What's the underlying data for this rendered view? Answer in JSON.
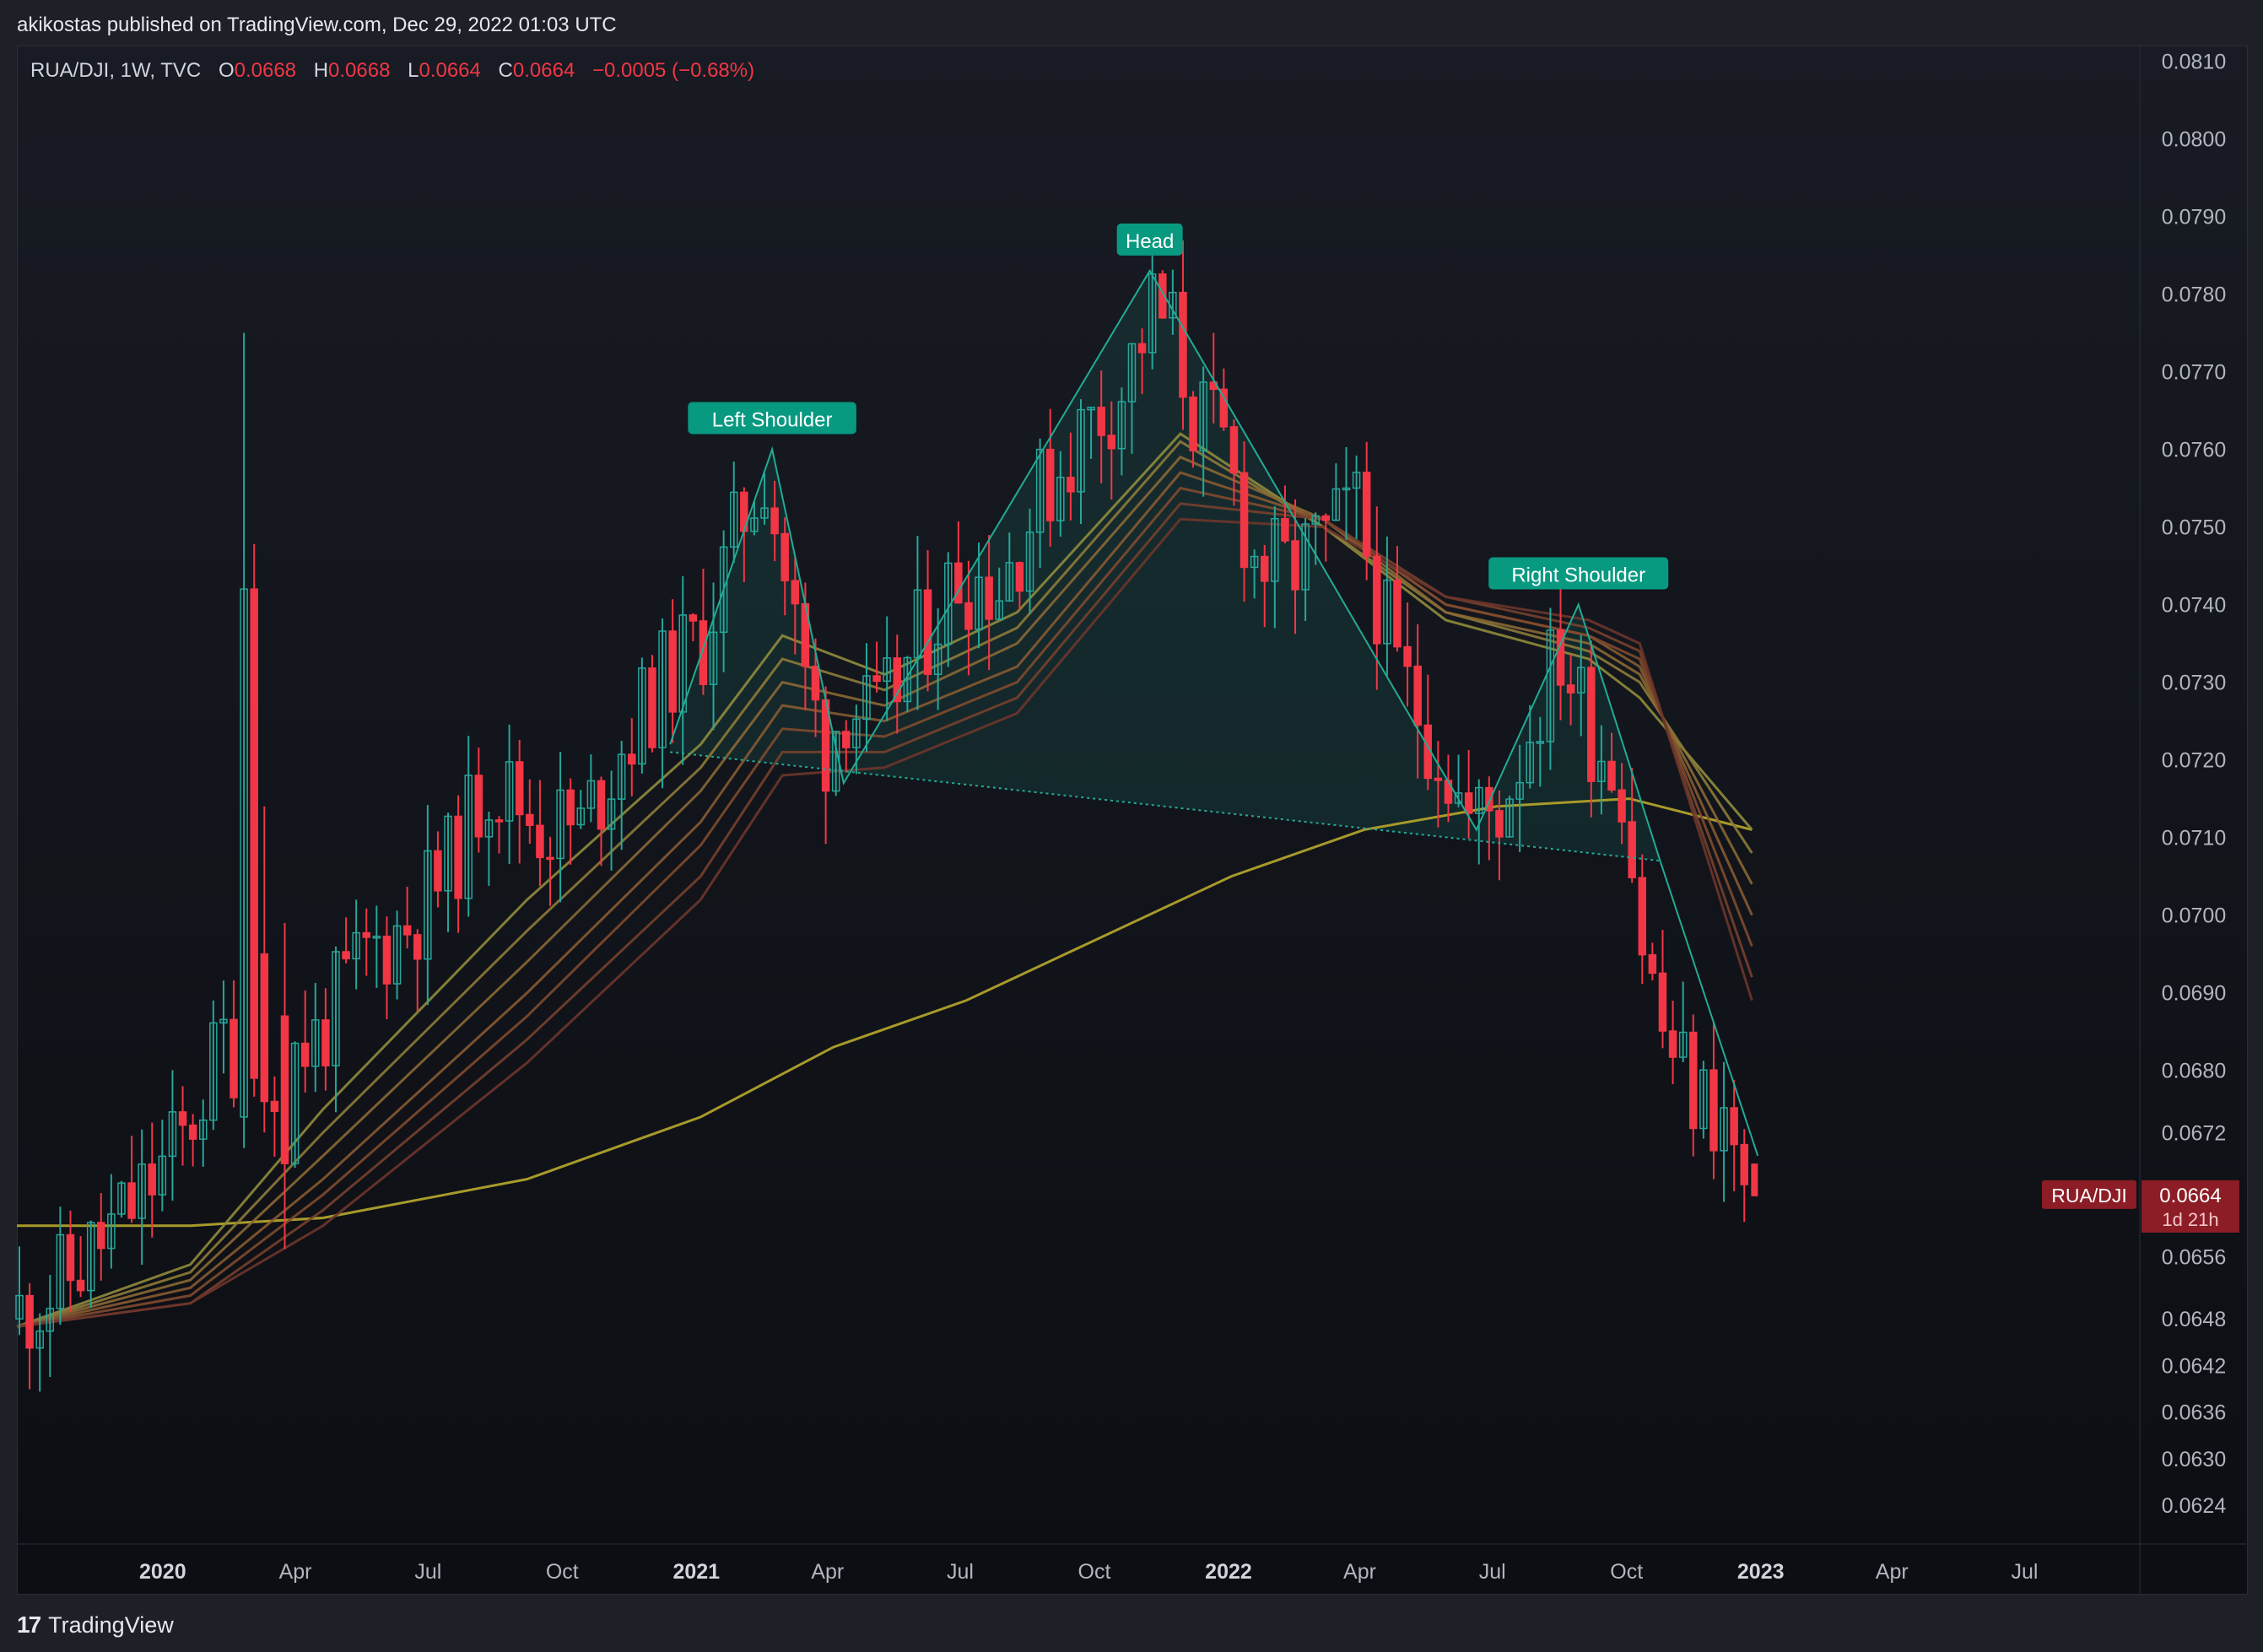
{
  "header": {
    "published_text": "akikostas published on TradingView.com, Dec 29, 2022 01:03 UTC"
  },
  "legend": {
    "symbol": "RUA/DJI, 1W, TVC",
    "o_label": "O",
    "o_value": "0.0668",
    "h_label": "H",
    "h_value": "0.0668",
    "l_label": "L",
    "l_value": "0.0664",
    "c_label": "C",
    "c_value": "0.0664",
    "change": "−0.0005 (−0.68%)"
  },
  "price_badge": {
    "symbol": "RUA/DJI",
    "price": "0.0664",
    "countdown": "1d 21h"
  },
  "footer": {
    "logo_glyph": "17",
    "brand": "TradingView"
  },
  "colors": {
    "up": "#26a69a",
    "down": "#f23645",
    "background": "#131722",
    "pattern": "#22ab94",
    "sma": "#a89a2a"
  },
  "chart_data": {
    "type": "candlestick",
    "interval": "1W",
    "y_axis": {
      "ticks": [
        "0.0810",
        "0.0800",
        "0.0790",
        "0.0780",
        "0.0770",
        "0.0760",
        "0.0750",
        "0.0740",
        "0.0730",
        "0.0720",
        "0.0710",
        "0.0700",
        "0.0690",
        "0.0680",
        "0.0672",
        "0.0656",
        "0.0648",
        "0.0642",
        "0.0636",
        "0.0630",
        "0.0624"
      ],
      "tick_values": [
        0.081,
        0.08,
        0.079,
        0.078,
        0.077,
        0.076,
        0.075,
        0.074,
        0.073,
        0.072,
        0.071,
        0.07,
        0.069,
        0.068,
        0.0672,
        0.0656,
        0.0648,
        0.0642,
        0.0636,
        0.063,
        0.0624
      ],
      "range": [
        0.0619,
        0.0812
      ]
    },
    "x_axis": {
      "labels": [
        {
          "text": "2020",
          "date": "2020-01-01",
          "bold": true
        },
        {
          "text": "Apr",
          "date": "2020-04-01"
        },
        {
          "text": "Jul",
          "date": "2020-07-01"
        },
        {
          "text": "Oct",
          "date": "2020-10-01"
        },
        {
          "text": "2021",
          "date": "2021-01-01",
          "bold": true
        },
        {
          "text": "Apr",
          "date": "2021-04-01"
        },
        {
          "text": "Jul",
          "date": "2021-07-01"
        },
        {
          "text": "Oct",
          "date": "2021-10-01"
        },
        {
          "text": "2022",
          "date": "2022-01-01",
          "bold": true
        },
        {
          "text": "Apr",
          "date": "2022-04-01"
        },
        {
          "text": "Jul",
          "date": "2022-07-01"
        },
        {
          "text": "Oct",
          "date": "2022-10-01"
        },
        {
          "text": "2023",
          "date": "2023-01-01",
          "bold": true
        },
        {
          "text": "Apr",
          "date": "2023-04-01"
        },
        {
          "text": "Jul",
          "date": "2023-07-01"
        }
      ],
      "range": [
        "2019-09-23",
        "2023-09-18"
      ]
    },
    "price_path": [
      [
        "2019-09-23",
        0.0648
      ],
      [
        "2019-11-01",
        0.0653
      ],
      [
        "2019-12-15",
        0.0662
      ],
      [
        "2020-01-20",
        0.0671
      ],
      [
        "2020-02-17",
        0.0684
      ],
      [
        "2020-03-16",
        0.068
      ],
      [
        "2020-04-20",
        0.0684
      ],
      [
        "2020-05-25",
        0.0695
      ],
      [
        "2020-06-22",
        0.0699
      ],
      [
        "2020-07-20",
        0.0706
      ],
      [
        "2020-08-17",
        0.0718
      ],
      [
        "2020-09-21",
        0.0712
      ],
      [
        "2020-10-19",
        0.0711
      ],
      [
        "2020-11-16",
        0.0722
      ],
      [
        "2020-12-14",
        0.073
      ],
      [
        "2021-01-11",
        0.0736
      ],
      [
        "2021-02-08",
        0.0752
      ],
      [
        "2021-02-22",
        0.0758
      ],
      [
        "2021-03-08",
        0.0744
      ],
      [
        "2021-03-22",
        0.073
      ],
      [
        "2021-04-05",
        0.0722
      ],
      [
        "2021-04-19",
        0.0728
      ],
      [
        "2021-05-10",
        0.0724
      ],
      [
        "2021-06-07",
        0.0735
      ],
      [
        "2021-07-05",
        0.0744
      ],
      [
        "2021-08-02",
        0.0743
      ],
      [
        "2021-08-30",
        0.0754
      ],
      [
        "2021-09-27",
        0.0762
      ],
      [
        "2021-10-25",
        0.0768
      ],
      [
        "2021-11-15",
        0.0778
      ],
      [
        "2021-11-29",
        0.0775
      ],
      [
        "2021-12-13",
        0.0765
      ],
      [
        "2022-01-03",
        0.076
      ],
      [
        "2022-01-24",
        0.0746
      ],
      [
        "2022-02-14",
        0.0744
      ],
      [
        "2022-03-14",
        0.0748
      ],
      [
        "2022-04-04",
        0.0752
      ],
      [
        "2022-05-02",
        0.0731
      ],
      [
        "2022-05-30",
        0.0722
      ],
      [
        "2022-06-20",
        0.0712
      ],
      [
        "2022-07-11",
        0.0714
      ],
      [
        "2022-08-08",
        0.0728
      ],
      [
        "2022-08-22",
        0.0734
      ],
      [
        "2022-09-12",
        0.0724
      ],
      [
        "2022-10-03",
        0.0718
      ],
      [
        "2022-10-17",
        0.0697
      ],
      [
        "2022-10-31",
        0.0685
      ],
      [
        "2022-11-21",
        0.0677
      ],
      [
        "2022-12-12",
        0.0674
      ],
      [
        "2022-12-26",
        0.0664
      ]
    ],
    "spikes": [
      {
        "date": "2020-02-24",
        "open": 0.0674,
        "high": 0.0775,
        "low": 0.067,
        "close": 0.0742
      },
      {
        "date": "2020-03-09",
        "open": 0.0695,
        "high": 0.0714,
        "low": 0.0672,
        "close": 0.0676
      },
      {
        "date": "2020-03-23",
        "open": 0.0687,
        "high": 0.0699,
        "low": 0.0657,
        "close": 0.0668
      }
    ],
    "last_candle": {
      "date": "2022-12-26",
      "open": 0.0668,
      "high": 0.0668,
      "low": 0.0664,
      "close": 0.0664
    },
    "ema_ribbon": [
      {
        "name": "",
        "points": [
          [
            "2019-09-23",
            0.0647
          ],
          [
            "2020-01-20",
            0.0655
          ],
          [
            "2020-04-20",
            0.0675
          ],
          [
            "2020-09-07",
            0.0702
          ],
          [
            "2021-01-04",
            0.0722
          ],
          [
            "2021-03-01",
            0.0736
          ],
          [
            "2021-05-10",
            0.0731
          ],
          [
            "2021-08-09",
            0.0739
          ],
          [
            "2021-11-29",
            0.0762
          ],
          [
            "2022-03-07",
            0.075
          ],
          [
            "2022-05-30",
            0.0738
          ],
          [
            "2022-09-05",
            0.0733
          ],
          [
            "2022-10-10",
            0.0728
          ],
          [
            "2022-12-26",
            0.0711
          ]
        ]
      },
      {
        "name": "",
        "points": [
          [
            "2019-09-23",
            0.0647
          ],
          [
            "2020-01-20",
            0.0654
          ],
          [
            "2020-04-20",
            0.0672
          ],
          [
            "2020-09-07",
            0.0698
          ],
          [
            "2021-01-04",
            0.0719
          ],
          [
            "2021-03-01",
            0.0733
          ],
          [
            "2021-05-10",
            0.0729
          ],
          [
            "2021-08-09",
            0.0737
          ],
          [
            "2021-11-29",
            0.0761
          ],
          [
            "2022-03-07",
            0.075
          ],
          [
            "2022-05-30",
            0.0739
          ],
          [
            "2022-09-05",
            0.0734
          ],
          [
            "2022-10-10",
            0.073
          ],
          [
            "2022-12-26",
            0.0708
          ]
        ]
      },
      {
        "name": "",
        "points": [
          [
            "2019-09-23",
            0.0647
          ],
          [
            "2020-01-20",
            0.0653
          ],
          [
            "2020-04-20",
            0.0669
          ],
          [
            "2020-09-07",
            0.0694
          ],
          [
            "2021-01-04",
            0.0716
          ],
          [
            "2021-03-01",
            0.073
          ],
          [
            "2021-05-10",
            0.0727
          ],
          [
            "2021-08-09",
            0.0735
          ],
          [
            "2021-11-29",
            0.0759
          ],
          [
            "2022-03-07",
            0.0751
          ],
          [
            "2022-05-30",
            0.0739
          ],
          [
            "2022-09-05",
            0.0735
          ],
          [
            "2022-10-10",
            0.0731
          ],
          [
            "2022-12-26",
            0.0704
          ]
        ]
      },
      {
        "name": "",
        "points": [
          [
            "2019-09-23",
            0.0647
          ],
          [
            "2020-01-20",
            0.0652
          ],
          [
            "2020-04-20",
            0.0666
          ],
          [
            "2020-09-07",
            0.069
          ],
          [
            "2021-01-04",
            0.0712
          ],
          [
            "2021-03-01",
            0.0727
          ],
          [
            "2021-05-10",
            0.0725
          ],
          [
            "2021-08-09",
            0.0732
          ],
          [
            "2021-11-29",
            0.0757
          ],
          [
            "2022-03-07",
            0.0751
          ],
          [
            "2022-05-30",
            0.074
          ],
          [
            "2022-09-05",
            0.0736
          ],
          [
            "2022-10-10",
            0.0732
          ],
          [
            "2022-12-26",
            0.07
          ]
        ]
      },
      {
        "name": "",
        "points": [
          [
            "2019-09-23",
            0.0647
          ],
          [
            "2020-01-20",
            0.0651
          ],
          [
            "2020-04-20",
            0.0664
          ],
          [
            "2020-09-07",
            0.0687
          ],
          [
            "2021-01-04",
            0.0709
          ],
          [
            "2021-03-01",
            0.0724
          ],
          [
            "2021-05-10",
            0.0723
          ],
          [
            "2021-08-09",
            0.073
          ],
          [
            "2021-11-29",
            0.0755
          ],
          [
            "2022-03-07",
            0.0751
          ],
          [
            "2022-05-30",
            0.074
          ],
          [
            "2022-09-05",
            0.0736
          ],
          [
            "2022-10-10",
            0.0733
          ],
          [
            "2022-12-26",
            0.0696
          ]
        ]
      },
      {
        "name": "",
        "points": [
          [
            "2019-09-23",
            0.0647
          ],
          [
            "2020-01-20",
            0.065
          ],
          [
            "2020-04-20",
            0.0662
          ],
          [
            "2020-09-07",
            0.0684
          ],
          [
            "2021-01-04",
            0.0705
          ],
          [
            "2021-03-01",
            0.0721
          ],
          [
            "2021-05-10",
            0.0721
          ],
          [
            "2021-08-09",
            0.0728
          ],
          [
            "2021-11-29",
            0.0753
          ],
          [
            "2022-03-07",
            0.0751
          ],
          [
            "2022-05-30",
            0.0741
          ],
          [
            "2022-09-05",
            0.0737
          ],
          [
            "2022-10-10",
            0.0734
          ],
          [
            "2022-12-26",
            0.0692
          ]
        ]
      },
      {
        "name": "",
        "points": [
          [
            "2019-09-23",
            0.0647
          ],
          [
            "2020-01-20",
            0.065
          ],
          [
            "2020-04-20",
            0.066
          ],
          [
            "2020-09-07",
            0.0681
          ],
          [
            "2021-01-04",
            0.0702
          ],
          [
            "2021-03-01",
            0.0718
          ],
          [
            "2021-05-10",
            0.0719
          ],
          [
            "2021-08-09",
            0.0726
          ],
          [
            "2021-11-29",
            0.0751
          ],
          [
            "2022-03-07",
            0.075
          ],
          [
            "2022-05-30",
            0.0741
          ],
          [
            "2022-09-05",
            0.0738
          ],
          [
            "2022-10-10",
            0.0735
          ],
          [
            "2022-12-26",
            0.0689
          ]
        ]
      }
    ],
    "sma": {
      "name": "",
      "points": [
        [
          "2019-09-23",
          0.066
        ],
        [
          "2020-01-20",
          0.066
        ],
        [
          "2020-04-20",
          0.0661
        ],
        [
          "2020-09-07",
          0.0666
        ],
        [
          "2021-01-04",
          0.0674
        ],
        [
          "2021-04-05",
          0.0683
        ],
        [
          "2021-07-05",
          0.0689
        ],
        [
          "2021-10-04",
          0.0697
        ],
        [
          "2022-01-03",
          0.0705
        ],
        [
          "2022-04-04",
          0.0711
        ],
        [
          "2022-07-04",
          0.0714
        ],
        [
          "2022-10-03",
          0.0715
        ],
        [
          "2022-12-26",
          0.0711
        ]
      ]
    },
    "pattern": {
      "type": "head_and_shoulders",
      "labels": [
        "Left Shoulder",
        "Head",
        "Right Shoulder"
      ],
      "points": [
        [
          "2020-12-14",
          0.0722
        ],
        [
          "2021-02-22",
          0.076
        ],
        [
          "2021-04-12",
          0.0717
        ],
        [
          "2021-11-08",
          0.0783
        ],
        [
          "2022-06-20",
          0.0711
        ],
        [
          "2022-08-29",
          0.074
        ],
        [
          "2022-10-24",
          0.0707
        ]
      ],
      "neckline": [
        [
          "2020-12-14",
          0.0721
        ],
        [
          "2022-10-24",
          0.0707
        ]
      ],
      "breakdown": [
        [
          "2022-10-24",
          0.0707
        ],
        [
          "2022-12-30",
          0.0669
        ]
      ]
    }
  }
}
